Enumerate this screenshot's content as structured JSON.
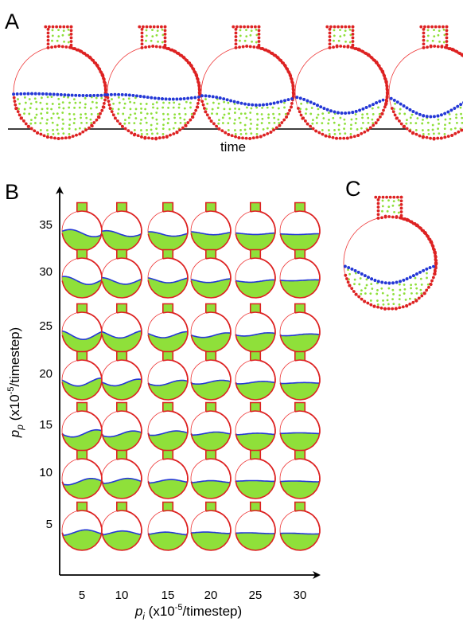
{
  "panel_a": {
    "label": "A",
    "axis_label": "time"
  },
  "panel_b": {
    "label": "B",
    "y_axis": {
      "symbol": "p",
      "subscript": "p",
      "prefix": " (x10",
      "exponent": "-5",
      "suffix": "/timestep)",
      "ticks": [
        35,
        30,
        25,
        20,
        15,
        10,
        5
      ]
    },
    "x_axis": {
      "symbol": "p",
      "subscript": "i",
      "prefix": " (x10",
      "exponent": "-5",
      "suffix": "/timestep)",
      "ticks": [
        5,
        10,
        15,
        20,
        25,
        30
      ]
    }
  },
  "panel_c": {
    "label": "C"
  }
}
